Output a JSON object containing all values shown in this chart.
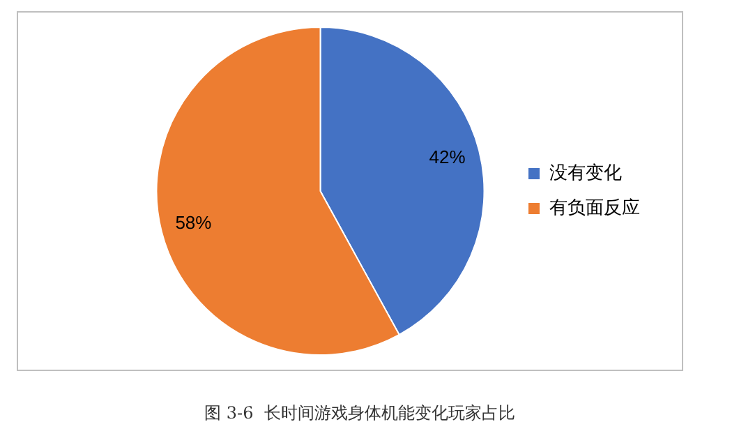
{
  "chart_data": {
    "type": "pie",
    "categories": [
      "没有变化",
      "有负面反应"
    ],
    "values": [
      42,
      58
    ],
    "colors": [
      "#4472c4",
      "#ed7d31"
    ],
    "value_labels": [
      "42%",
      "58%"
    ],
    "legend": "right",
    "annotations": [
      "图 3-6  长时间游戏身体机能变化玩家占比"
    ]
  }
}
